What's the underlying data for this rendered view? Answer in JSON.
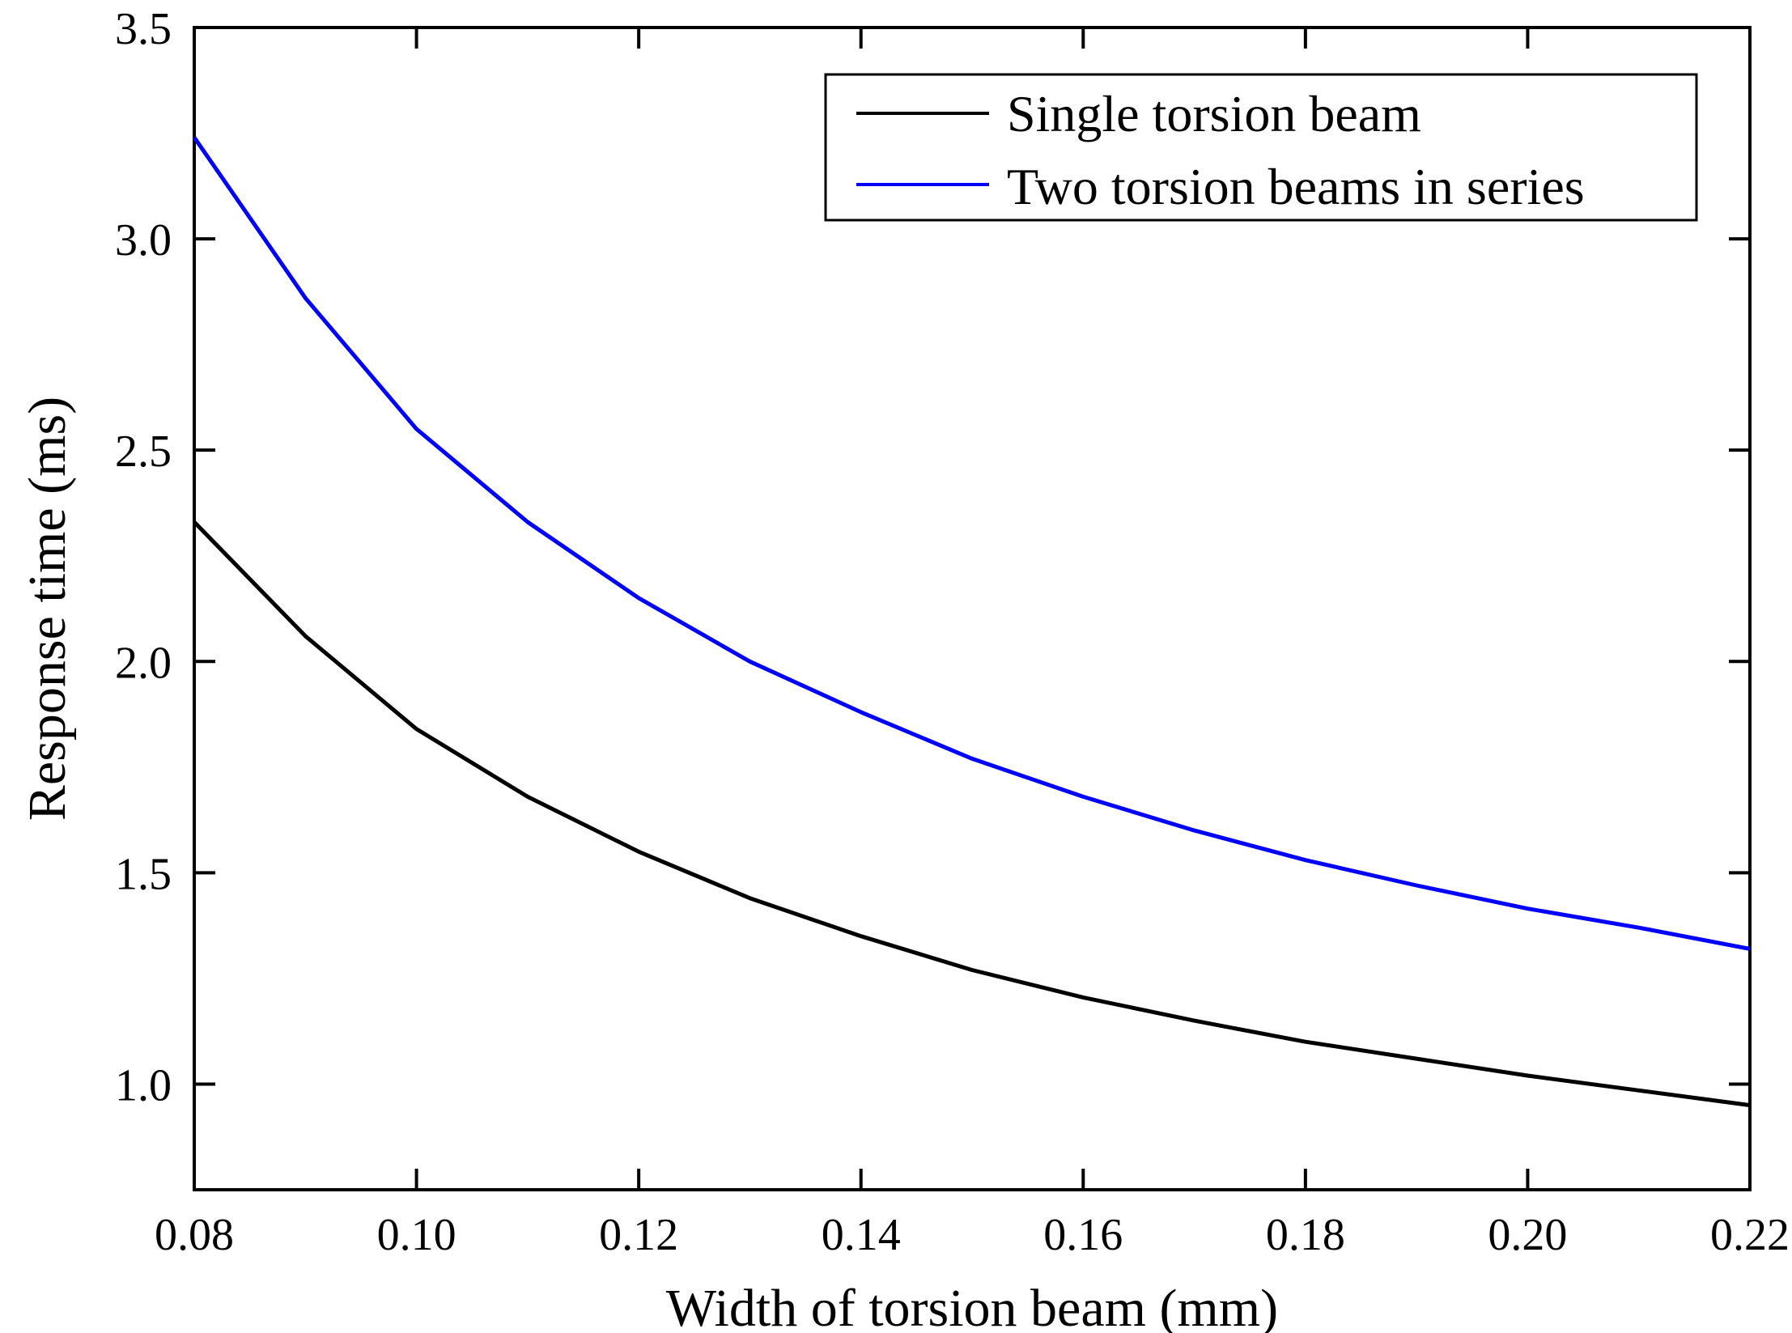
{
  "chart_data": {
    "type": "line",
    "title": "",
    "xlabel": "Width of torsion beam (mm)",
    "ylabel": "Response time (ms)",
    "xlim": [
      0.08,
      0.22
    ],
    "ylim": [
      0.75,
      3.5
    ],
    "xticks": [
      0.08,
      0.1,
      0.12,
      0.14,
      0.16,
      0.18,
      0.2,
      0.22
    ],
    "xtick_labels": [
      "0.08",
      "0.10",
      "0.12",
      "0.14",
      "0.16",
      "0.18",
      "0.20",
      "0.22"
    ],
    "yticks": [
      1.0,
      1.5,
      2.0,
      2.5,
      3.0,
      3.5
    ],
    "ytick_labels": [
      "1.0",
      "1.5",
      "2.0",
      "2.5",
      "3.0",
      "3.5"
    ],
    "grid": false,
    "legend_position": "top-right",
    "x": [
      0.08,
      0.09,
      0.1,
      0.11,
      0.12,
      0.13,
      0.14,
      0.15,
      0.16,
      0.17,
      0.18,
      0.19,
      0.2,
      0.21,
      0.22
    ],
    "series": [
      {
        "name": "Single torsion beam",
        "color": "#000000",
        "values": [
          2.33,
          2.06,
          1.84,
          1.68,
          1.55,
          1.44,
          1.35,
          1.27,
          1.205,
          1.15,
          1.1,
          1.06,
          1.02,
          0.985,
          0.95
        ]
      },
      {
        "name": "Two torsion beams in series",
        "color": "#0000ff",
        "values": [
          3.24,
          2.86,
          2.55,
          2.33,
          2.15,
          2.0,
          1.88,
          1.77,
          1.68,
          1.6,
          1.53,
          1.47,
          1.415,
          1.37,
          1.32
        ]
      }
    ]
  }
}
